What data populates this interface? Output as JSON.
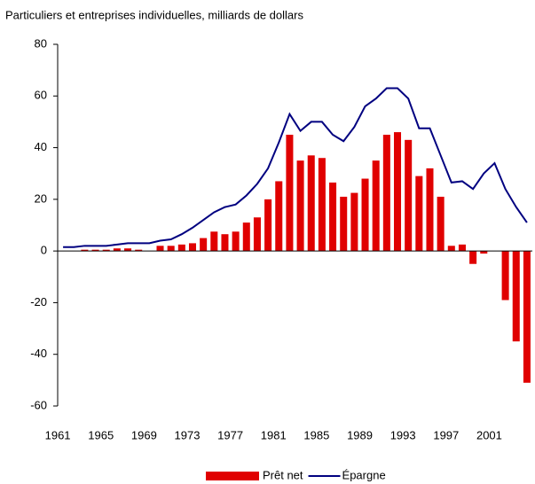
{
  "chart_data": {
    "type": "bar",
    "title": "Particuliers et entreprises individuelles, milliards de dollars",
    "categories": [
      "1961",
      null,
      null,
      null,
      "1965",
      null,
      null,
      null,
      "1969",
      null,
      null,
      null,
      "1973",
      null,
      null,
      null,
      "1977",
      null,
      null,
      null,
      "1981",
      null,
      null,
      null,
      "1985",
      null,
      null,
      null,
      "1989",
      null,
      null,
      null,
      "1993",
      null,
      null,
      null,
      "1997",
      null,
      null,
      null,
      "2001",
      null,
      null,
      null
    ],
    "series": [
      {
        "name": "Prêt net",
        "color": "#e00000",
        "type": "bar",
        "values": [
          0,
          0,
          0.5,
          0.5,
          0.5,
          1,
          1,
          0.5,
          0,
          2,
          2,
          2.5,
          3,
          5,
          7.5,
          6.5,
          7.5,
          11,
          13,
          20,
          27,
          45,
          35,
          37,
          36,
          26.5,
          21,
          22.5,
          28,
          35,
          45,
          46,
          43,
          29,
          32,
          21,
          2,
          2.5,
          -5,
          -1,
          0,
          -19,
          -35,
          -51
        ]
      },
      {
        "name": "Épargne",
        "color": "#000080",
        "type": "line",
        "values": [
          1.5,
          1.5,
          2,
          2,
          2,
          2.5,
          3,
          3,
          3,
          4,
          4.5,
          6.5,
          9,
          12,
          15,
          17,
          18,
          21.5,
          26,
          32,
          42,
          53,
          46.5,
          50,
          50,
          45,
          42.5,
          48,
          56,
          59,
          63,
          63,
          59,
          47.5,
          47.5,
          37,
          26.5,
          27,
          24,
          30,
          34,
          24,
          17,
          11
        ]
      }
    ],
    "ylim": [
      -60,
      80
    ],
    "yticks": [
      -60,
      -40,
      -20,
      0,
      20,
      40,
      60,
      80
    ],
    "legend": "bottom"
  }
}
